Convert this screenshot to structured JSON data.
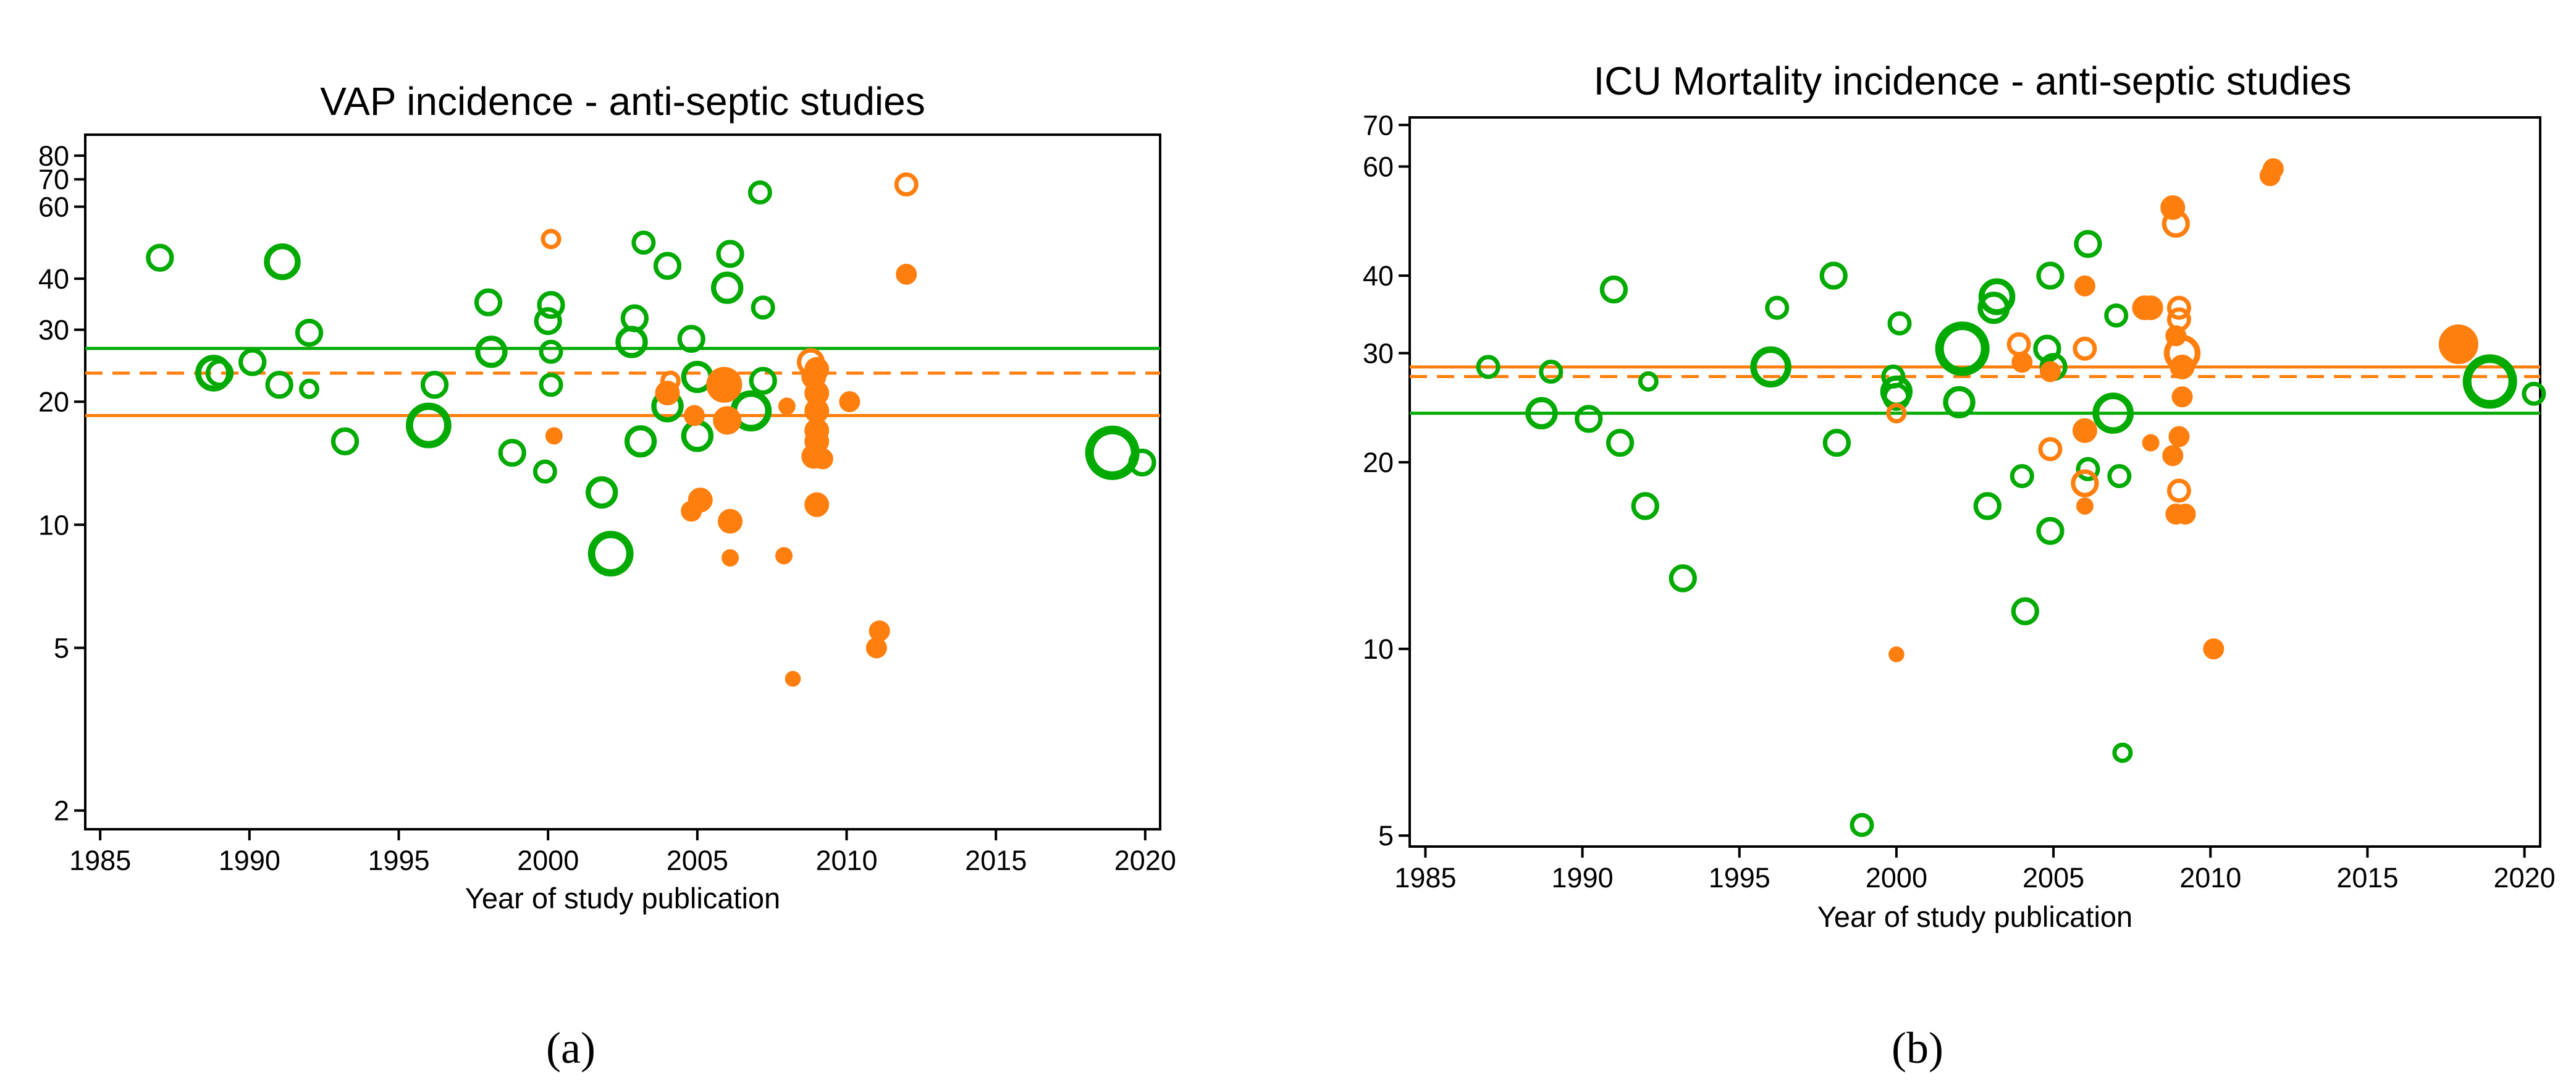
{
  "colors": {
    "control": "#00aa00",
    "antiseptic": "#ff7f0e"
  },
  "chart_data": [
    {
      "type": "scatter",
      "panel_label": "(a)",
      "title": "VAP incidence - anti-septic studies",
      "xlabel": "Year of study publication",
      "ylabel": "",
      "xlim": [
        1984.5,
        2020.5
      ],
      "ylim": [
        1.8,
        90
      ],
      "yscale": "log",
      "xticks": [
        1985,
        1990,
        1995,
        2000,
        2005,
        2010,
        2015,
        2020
      ],
      "yticks": [
        2,
        5,
        10,
        20,
        30,
        40,
        60,
        70,
        80
      ],
      "reference_lines": [
        {
          "series": "control",
          "style": "solid",
          "y": 27
        },
        {
          "series": "antiseptic",
          "style": "dashed",
          "y": 23.5
        },
        {
          "series": "antiseptic",
          "style": "solid",
          "y": 18.5
        }
      ],
      "series": [
        {
          "name": "control",
          "style": "hollow",
          "points": [
            [
              1987,
              45,
              2
            ],
            [
              1988.8,
              23.5,
              3
            ],
            [
              1989,
              23.5,
              2
            ],
            [
              1990.1,
              25,
              2
            ],
            [
              1991,
              22,
              2
            ],
            [
              1991.1,
              44,
              3
            ],
            [
              1992,
              21.5,
              1
            ],
            [
              1992,
              29.5,
              2
            ],
            [
              1993.2,
              16,
              2
            ],
            [
              1996,
              17.5,
              4
            ],
            [
              1996.2,
              22,
              2
            ],
            [
              1998,
              35,
              2
            ],
            [
              1998.1,
              26.5,
              2.5
            ],
            [
              1998.8,
              15,
              2
            ],
            [
              1999.9,
              13.5,
              1.5
            ],
            [
              2000,
              31.5,
              2
            ],
            [
              2000.1,
              34.5,
              2
            ],
            [
              2000.1,
              26.5,
              1.5
            ],
            [
              2000.1,
              22,
              1.5
            ],
            [
              2001.8,
              12,
              2.5
            ],
            [
              2002.1,
              8.5,
              4
            ],
            [
              2002.8,
              28,
              2.5
            ],
            [
              2002.9,
              32,
              2
            ],
            [
              2003.1,
              16,
              2.5
            ],
            [
              2003.2,
              49,
              1.5
            ],
            [
              2004,
              43,
              2
            ],
            [
              2004,
              19.5,
              2.5
            ],
            [
              2004.8,
              28.5,
              2
            ],
            [
              2005,
              16.5,
              2.5
            ],
            [
              2005,
              23,
              2.5
            ],
            [
              2006,
              38,
              2.5
            ],
            [
              2006.1,
              46,
              2
            ],
            [
              2006.8,
              19,
              3.5
            ],
            [
              2007.1,
              65,
              1.5
            ],
            [
              2007.2,
              22.5,
              2
            ],
            [
              2007.2,
              34,
              1.5
            ],
            [
              2018.9,
              15,
              5
            ],
            [
              2019.9,
              14.2,
              2
            ]
          ]
        },
        {
          "name": "antiseptic",
          "style": "mixed",
          "points": [
            [
              2000.1,
              50,
              1,
              "o"
            ],
            [
              2000.2,
              16.5,
              1,
              "f"
            ],
            [
              2004,
              21,
              2,
              "f"
            ],
            [
              2004.1,
              22.5,
              1,
              "o"
            ],
            [
              2004.8,
              10.8,
              1.5,
              "f"
            ],
            [
              2004.9,
              18.5,
              1.5,
              "f"
            ],
            [
              2005.1,
              11.5,
              2,
              "f"
            ],
            [
              2005.9,
              22,
              3.5,
              "f"
            ],
            [
              2006,
              18,
              2.5,
              "f"
            ],
            [
              2006.1,
              10.2,
              2,
              "f"
            ],
            [
              2006.1,
              8.3,
              1,
              "f"
            ],
            [
              2007.9,
              8.4,
              1,
              "f"
            ],
            [
              2008,
              19.5,
              1,
              "f"
            ],
            [
              2008.2,
              4.2,
              0.8,
              "f"
            ],
            [
              2008.8,
              25,
              2,
              "o"
            ],
            [
              2008.9,
              23,
              2,
              "f"
            ],
            [
              2009,
              24,
              2,
              "f"
            ],
            [
              2009,
              21,
              2,
              "f"
            ],
            [
              2009,
              19,
              2,
              "f"
            ],
            [
              2009,
              17,
              2,
              "f"
            ],
            [
              2009,
              16,
              2,
              "f"
            ],
            [
              2008.9,
              14.7,
              2,
              "f"
            ],
            [
              2009.2,
              14.5,
              1.5,
              "f"
            ],
            [
              2009,
              11.2,
              2,
              "f"
            ],
            [
              2010.1,
              20,
              1.5,
              "f"
            ],
            [
              2011,
              5,
              1.5,
              "f"
            ],
            [
              2011.1,
              5.5,
              1.5,
              "f"
            ],
            [
              2012,
              68,
              1.5,
              "o"
            ],
            [
              2012,
              41,
              1.5,
              "f"
            ]
          ]
        }
      ]
    },
    {
      "type": "scatter",
      "panel_label": "(b)",
      "title": "ICU Mortality incidence - anti-septic studies",
      "xlabel": "Year of study publication",
      "ylabel": "",
      "xlim": [
        1984.5,
        2020.5
      ],
      "ylim": [
        4.8,
        72
      ],
      "yscale": "log",
      "xticks": [
        1985,
        1990,
        1995,
        2000,
        2005,
        2010,
        2015,
        2020
      ],
      "yticks": [
        5,
        10,
        20,
        30,
        40,
        60,
        70
      ],
      "reference_lines": [
        {
          "series": "antiseptic",
          "style": "solid",
          "y": 28.5
        },
        {
          "series": "antiseptic",
          "style": "dashed",
          "y": 27.5
        },
        {
          "series": "control",
          "style": "solid",
          "y": 24
        }
      ],
      "series": [
        {
          "name": "control",
          "style": "hollow",
          "points": [
            [
              1987,
              28.5,
              1.5
            ],
            [
              1988.7,
              24,
              2.5
            ],
            [
              1989,
              28,
              1.5
            ],
            [
              1990.2,
              23.5,
              2
            ],
            [
              1991,
              38,
              2
            ],
            [
              1991.2,
              21.5,
              2
            ],
            [
              1992.1,
              27,
              1
            ],
            [
              1992,
              17,
              2
            ],
            [
              1993.2,
              13,
              2
            ],
            [
              1996,
              28.5,
              3.5
            ],
            [
              1996.2,
              35.5,
              1.5
            ],
            [
              1998,
              40,
              2
            ],
            [
              1998.1,
              21.5,
              2
            ],
            [
              1998.9,
              5.2,
              1.5
            ],
            [
              1999.9,
              27.5,
              1.5
            ],
            [
              2000,
              26,
              2.5
            ],
            [
              2000.1,
              33.5,
              1.5
            ],
            [
              2000,
              25.5,
              2
            ],
            [
              2002,
              25,
              2.5
            ],
            [
              2002.1,
              30.5,
              5
            ],
            [
              2002.9,
              17,
              2
            ],
            [
              2003.1,
              35.5,
              2.5
            ],
            [
              2003.2,
              37,
              3
            ],
            [
              2004,
              19,
              1.5
            ],
            [
              2004.1,
              11.5,
              2
            ],
            [
              2004.8,
              30.5,
              2
            ],
            [
              2004.9,
              40,
              2
            ],
            [
              2005,
              28.5,
              2
            ],
            [
              2004.9,
              15.5,
              2
            ],
            [
              2006.1,
              19.5,
              1.5
            ],
            [
              2006.1,
              45,
              2
            ],
            [
              2006.9,
              24,
              3.5
            ],
            [
              2007,
              34.5,
              1.5
            ],
            [
              2007.1,
              19,
              1.5
            ],
            [
              2007.2,
              6.8,
              1
            ],
            [
              2018.9,
              27,
              5
            ],
            [
              2020.3,
              25.8,
              1.5
            ]
          ]
        },
        {
          "name": "antiseptic",
          "style": "mixed",
          "points": [
            [
              2000,
              24,
              1,
              "o"
            ],
            [
              2000,
              9.8,
              0.8,
              "f"
            ],
            [
              2003.9,
              31,
              1.5,
              "o"
            ],
            [
              2004,
              29,
              1.5,
              "f"
            ],
            [
              2004.9,
              28,
              1.5,
              "f"
            ],
            [
              2004.9,
              21,
              1.5,
              "o"
            ],
            [
              2006,
              30.5,
              1.5,
              "o"
            ],
            [
              2006,
              22.5,
              2,
              "f"
            ],
            [
              2006,
              18.5,
              2,
              "o"
            ],
            [
              2006,
              17,
              1,
              "f"
            ],
            [
              2006,
              38.5,
              1.5,
              "f"
            ],
            [
              2007.9,
              35.5,
              2,
              "f"
            ],
            [
              2008.1,
              35.5,
              2,
              "f"
            ],
            [
              2008.1,
              21.5,
              1,
              "f"
            ],
            [
              2008.8,
              51.5,
              2,
              "f"
            ],
            [
              2008.9,
              48.5,
              2,
              "o"
            ],
            [
              2009,
              35.5,
              1.5,
              "o"
            ],
            [
              2009,
              34,
              1.5,
              "o"
            ],
            [
              2008.9,
              32,
              1.5,
              "f"
            ],
            [
              2009.1,
              30,
              3,
              "o"
            ],
            [
              2009.1,
              28.5,
              2,
              "f"
            ],
            [
              2009.1,
              25.5,
              1.5,
              "f"
            ],
            [
              2009,
              22,
              1.5,
              "f"
            ],
            [
              2008.8,
              20.5,
              1.5,
              "f"
            ],
            [
              2009,
              18,
              1.5,
              "o"
            ],
            [
              2008.9,
              16.5,
              1.5,
              "f"
            ],
            [
              2009.2,
              16.5,
              1.5,
              "f"
            ],
            [
              2010.1,
              10,
              1.5,
              "f"
            ],
            [
              2011.9,
              58,
              1.5,
              "f"
            ],
            [
              2012,
              59.5,
              1.5,
              "f"
            ],
            [
              2017.9,
              31,
              4,
              "f"
            ]
          ]
        }
      ]
    }
  ]
}
